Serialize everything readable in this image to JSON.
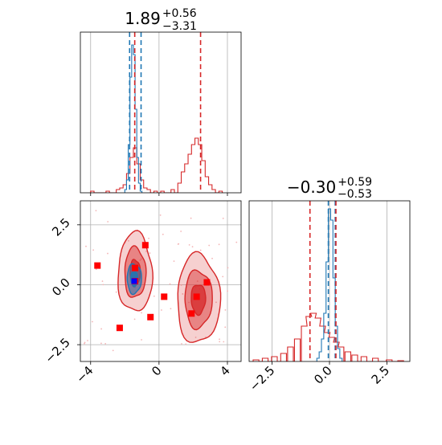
{
  "chart_data": [
    {
      "type": "histogram",
      "panel": "top-left",
      "title": "1.89",
      "title_sup": "+0.56",
      "title_sub": "−3.31",
      "xlim": [
        -4.6,
        4.8
      ],
      "grid": true,
      "series": [
        {
          "color": "#1f77b4",
          "bins": [
            [
              -1.95,
              0.02
            ],
            [
              -1.85,
              0.08
            ],
            [
              -1.75,
              0.3
            ],
            [
              -1.65,
              0.72
            ],
            [
              -1.55,
              0.92
            ],
            [
              -1.45,
              0.86
            ],
            [
              -1.35,
              0.52
            ],
            [
              -1.25,
              0.22
            ],
            [
              -1.15,
              0.06
            ],
            [
              -1.05,
              0.01
            ]
          ],
          "quantile_lines": [
            -1.72,
            -1.05
          ]
        },
        {
          "color": "#d62728",
          "bins": [
            [
              -3.9,
              0.01
            ],
            [
              -3.0,
              0.01
            ],
            [
              -2.4,
              0.02
            ],
            [
              -2.2,
              0.03
            ],
            [
              -2.0,
              0.05
            ],
            [
              -1.8,
              0.12
            ],
            [
              -1.6,
              0.22
            ],
            [
              -1.4,
              0.28
            ],
            [
              -1.2,
              0.18
            ],
            [
              -1.0,
              0.08
            ],
            [
              -0.8,
              0.03
            ],
            [
              -0.6,
              0.02
            ],
            [
              -0.2,
              0.01
            ],
            [
              0.2,
              0.01
            ],
            [
              0.8,
              0.02
            ],
            [
              1.2,
              0.06
            ],
            [
              1.4,
              0.13
            ],
            [
              1.6,
              0.18
            ],
            [
              1.8,
              0.24
            ],
            [
              2.0,
              0.3
            ],
            [
              2.2,
              0.34
            ],
            [
              2.4,
              0.3
            ],
            [
              2.6,
              0.2
            ],
            [
              2.8,
              0.1
            ],
            [
              3.0,
              0.05
            ],
            [
              3.2,
              0.02
            ],
            [
              3.6,
              0.01
            ]
          ],
          "quantile_lines": [
            -1.42,
            2.43
          ]
        }
      ]
    },
    {
      "type": "histogram",
      "panel": "bottom-right",
      "title": "−0.30",
      "title_sup": "+0.59",
      "title_sub": "−0.53",
      "xlim": [
        -3.5,
        3.5
      ],
      "xticks": [
        "−2.5",
        "0.0",
        "2.5"
      ],
      "grid": true,
      "series": [
        {
          "color": "#1f77b4",
          "bins": [
            [
              -0.5,
              0.02
            ],
            [
              -0.4,
              0.06
            ],
            [
              -0.3,
              0.14
            ],
            [
              -0.2,
              0.3
            ],
            [
              -0.1,
              0.62
            ],
            [
              0.0,
              0.95
            ],
            [
              0.1,
              0.88
            ],
            [
              0.2,
              0.52
            ],
            [
              0.3,
              0.22
            ],
            [
              0.4,
              0.08
            ],
            [
              0.5,
              0.02
            ]
          ],
          "quantile_lines": [
            -0.05,
            0.25
          ]
        },
        {
          "color": "#d62728",
          "bins": [
            [
              -3.2,
              0.01
            ],
            [
              -2.8,
              0.02
            ],
            [
              -2.4,
              0.03
            ],
            [
              -2.0,
              0.05
            ],
            [
              -1.7,
              0.09
            ],
            [
              -1.4,
              0.14
            ],
            [
              -1.1,
              0.22
            ],
            [
              -0.9,
              0.28
            ],
            [
              -0.7,
              0.3
            ],
            [
              -0.5,
              0.27
            ],
            [
              -0.3,
              0.22
            ],
            [
              -0.1,
              0.18
            ],
            [
              0.1,
              0.15
            ],
            [
              0.3,
              0.12
            ],
            [
              0.5,
              0.09
            ],
            [
              0.8,
              0.06
            ],
            [
              1.1,
              0.04
            ],
            [
              1.5,
              0.03
            ],
            [
              2.0,
              0.02
            ],
            [
              2.6,
              0.01
            ],
            [
              3.1,
              0.005
            ]
          ],
          "quantile_lines": [
            -0.85,
            0.28
          ]
        }
      ]
    },
    {
      "type": "scatter",
      "panel": "bottom-left",
      "xlim": [
        -4.6,
        4.8
      ],
      "ylim": [
        -3.2,
        3.5
      ],
      "xticks": [
        "−4",
        "0",
        "4"
      ],
      "yticks": [
        "−2.5",
        "0.0",
        "2.5"
      ],
      "grid": true,
      "contours": [
        {
          "color": "#d62728",
          "center": [
            -1.4,
            0.5
          ],
          "levels": [
            [
              1.0,
              1.65
            ],
            [
              0.62,
              1.05
            ],
            [
              0.3,
              0.55
            ]
          ]
        },
        {
          "color": "#d62728",
          "center": [
            2.3,
            -0.6
          ],
          "levels": [
            [
              1.25,
              1.85
            ],
            [
              0.8,
              1.2
            ],
            [
              0.42,
              0.62
            ]
          ]
        },
        {
          "color": "#1f77b4",
          "center": [
            -1.45,
            0.25
          ],
          "levels": [
            [
              0.42,
              0.62
            ],
            [
              0.2,
              0.3
            ]
          ]
        }
      ],
      "points": [
        {
          "x": -3.6,
          "y": 0.8,
          "color": "#ff0000"
        },
        {
          "x": -2.3,
          "y": -1.8,
          "color": "#ff0000"
        },
        {
          "x": -1.4,
          "y": 0.7,
          "color": "#ff0000"
        },
        {
          "x": -1.4,
          "y": 0.15,
          "color": "#ff0000"
        },
        {
          "x": -0.8,
          "y": 1.65,
          "color": "#ff0000"
        },
        {
          "x": -0.5,
          "y": -1.35,
          "color": "#ff0000"
        },
        {
          "x": 0.3,
          "y": -0.5,
          "color": "#ff0000"
        },
        {
          "x": 1.9,
          "y": -1.2,
          "color": "#ff0000"
        },
        {
          "x": 2.2,
          "y": -0.5,
          "color": "#ff0000"
        },
        {
          "x": 2.8,
          "y": 0.1,
          "color": "#ff0000"
        },
        {
          "x": -1.45,
          "y": 0.15,
          "color": "#0000ff"
        }
      ]
    }
  ]
}
